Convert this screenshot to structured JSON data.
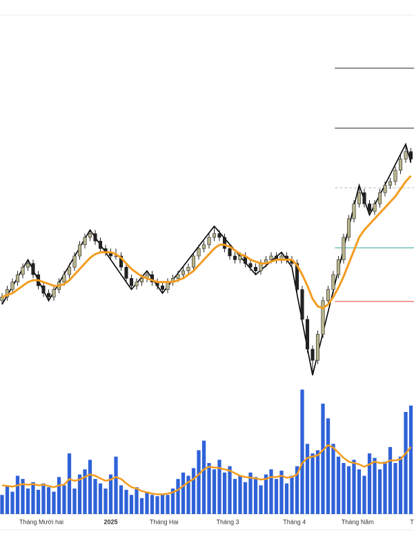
{
  "chart_data": {
    "type": "candlestick",
    "xlim": [
      -0.4,
      79.6
    ],
    "ylim": [
      20,
      30
    ],
    "volume_ylim": [
      0,
      200
    ],
    "up_color": "#b8b48c",
    "down_color": "#222222",
    "wick_color": "#222222",
    "ma_color": "#f39c1f",
    "volume_color": "#2f62d8",
    "zigzag_color": "#000000",
    "candles": [
      [
        22.3,
        22.5,
        22.2,
        22.4
      ],
      [
        22.4,
        22.7,
        22.3,
        22.6
      ],
      [
        22.6,
        22.9,
        22.5,
        22.8
      ],
      [
        22.8,
        23.1,
        22.7,
        23.0
      ],
      [
        23.0,
        23.3,
        22.9,
        23.2
      ],
      [
        23.2,
        23.4,
        23.1,
        23.3
      ],
      [
        23.3,
        23.4,
        22.9,
        23.0
      ],
      [
        23.0,
        23.1,
        22.6,
        22.7
      ],
      [
        22.7,
        22.8,
        22.4,
        22.5
      ],
      [
        22.5,
        22.6,
        22.3,
        22.4
      ],
      [
        22.4,
        22.7,
        22.3,
        22.6
      ],
      [
        22.6,
        22.9,
        22.5,
        22.8
      ],
      [
        22.8,
        23.1,
        22.7,
        23.0
      ],
      [
        23.0,
        23.3,
        22.9,
        23.2
      ],
      [
        23.2,
        23.6,
        23.1,
        23.5
      ],
      [
        23.5,
        23.9,
        23.4,
        23.8
      ],
      [
        23.8,
        24.1,
        23.7,
        24.0
      ],
      [
        24.0,
        24.2,
        23.9,
        24.1
      ],
      [
        24.1,
        24.2,
        23.8,
        23.9
      ],
      [
        23.9,
        24.0,
        23.6,
        23.7
      ],
      [
        23.7,
        23.8,
        23.5,
        23.6
      ],
      [
        23.6,
        23.7,
        23.4,
        23.5
      ],
      [
        23.5,
        23.7,
        23.4,
        23.5
      ],
      [
        23.5,
        23.6,
        23.1,
        23.2
      ],
      [
        23.2,
        23.3,
        22.8,
        22.9
      ],
      [
        22.9,
        23.0,
        22.6,
        22.7
      ],
      [
        22.7,
        22.9,
        22.6,
        22.8
      ],
      [
        22.8,
        23.0,
        22.7,
        22.9
      ],
      [
        22.9,
        23.1,
        22.8,
        23.0
      ],
      [
        23.0,
        23.1,
        22.7,
        22.8
      ],
      [
        22.8,
        22.9,
        22.6,
        22.7
      ],
      [
        22.7,
        22.8,
        22.5,
        22.6
      ],
      [
        22.6,
        22.9,
        22.5,
        22.8
      ],
      [
        22.8,
        23.0,
        22.7,
        22.9
      ],
      [
        22.9,
        23.1,
        22.8,
        23.0
      ],
      [
        23.0,
        23.2,
        22.9,
        23.1
      ],
      [
        23.1,
        23.3,
        23.0,
        23.2
      ],
      [
        23.2,
        23.6,
        23.1,
        23.5
      ],
      [
        23.5,
        23.8,
        23.4,
        23.7
      ],
      [
        23.7,
        23.9,
        23.6,
        23.8
      ],
      [
        23.8,
        24.1,
        23.7,
        24.0
      ],
      [
        24.0,
        24.3,
        23.9,
        24.1
      ],
      [
        24.1,
        24.2,
        23.9,
        24.0
      ],
      [
        24.0,
        24.1,
        23.6,
        23.7
      ],
      [
        23.7,
        23.8,
        23.4,
        23.5
      ],
      [
        23.5,
        23.6,
        23.3,
        23.4
      ],
      [
        23.4,
        23.6,
        23.3,
        23.5
      ],
      [
        23.5,
        23.6,
        23.2,
        23.3
      ],
      [
        23.3,
        23.4,
        23.1,
        23.2
      ],
      [
        23.2,
        23.3,
        23.0,
        23.1
      ],
      [
        23.1,
        23.4,
        23.0,
        23.3
      ],
      [
        23.3,
        23.5,
        23.2,
        23.4
      ],
      [
        23.4,
        23.6,
        23.3,
        23.5
      ],
      [
        23.5,
        23.6,
        23.3,
        23.4
      ],
      [
        23.4,
        23.6,
        23.3,
        23.5
      ],
      [
        23.5,
        23.6,
        23.3,
        23.4
      ],
      [
        23.4,
        23.5,
        23.2,
        23.3
      ],
      [
        23.3,
        23.4,
        22.5,
        22.6
      ],
      [
        22.6,
        22.7,
        21.7,
        21.8
      ],
      [
        21.8,
        21.9,
        20.9,
        21.0
      ],
      [
        21.0,
        21.1,
        20.3,
        20.7
      ],
      [
        20.7,
        21.5,
        20.6,
        21.4
      ],
      [
        21.4,
        22.4,
        21.3,
        22.3
      ],
      [
        22.3,
        22.7,
        22.2,
        22.6
      ],
      [
        22.6,
        23.1,
        22.5,
        23.0
      ],
      [
        23.0,
        23.5,
        22.9,
        23.4
      ],
      [
        23.4,
        24.1,
        23.3,
        24.0
      ],
      [
        24.0,
        24.6,
        23.9,
        24.5
      ],
      [
        24.5,
        25.0,
        24.4,
        24.9
      ],
      [
        24.9,
        25.4,
        24.8,
        25.2
      ],
      [
        25.2,
        25.3,
        24.8,
        24.9
      ],
      [
        24.9,
        25.0,
        24.6,
        24.7
      ],
      [
        24.7,
        25.0,
        24.6,
        24.9
      ],
      [
        24.9,
        25.3,
        24.8,
        25.2
      ],
      [
        25.2,
        25.5,
        25.1,
        25.4
      ],
      [
        25.4,
        25.6,
        25.3,
        25.5
      ],
      [
        25.5,
        25.9,
        25.4,
        25.8
      ],
      [
        25.8,
        26.2,
        25.7,
        26.1
      ],
      [
        26.1,
        26.5,
        26.0,
        26.3
      ],
      [
        26.3,
        26.4,
        26.0,
        26.1
      ]
    ],
    "ma": [
      22.4,
      22.45,
      22.5,
      22.6,
      22.7,
      22.8,
      22.85,
      22.85,
      22.8,
      22.75,
      22.7,
      22.7,
      22.75,
      22.85,
      23.0,
      23.15,
      23.3,
      23.45,
      23.55,
      23.6,
      23.6,
      23.6,
      23.55,
      23.45,
      23.3,
      23.15,
      23.05,
      22.95,
      22.9,
      22.85,
      22.8,
      22.8,
      22.8,
      22.8,
      22.85,
      22.9,
      23.0,
      23.1,
      23.25,
      23.4,
      23.55,
      23.7,
      23.8,
      23.8,
      23.75,
      23.65,
      23.55,
      23.5,
      23.4,
      23.35,
      23.3,
      23.3,
      23.35,
      23.4,
      23.4,
      23.4,
      23.4,
      23.25,
      23.0,
      22.7,
      22.35,
      22.15,
      22.1,
      22.2,
      22.4,
      22.65,
      22.95,
      23.3,
      23.65,
      24.0,
      24.2,
      24.35,
      24.5,
      24.65,
      24.8,
      24.95,
      25.1,
      25.3,
      25.5,
      25.65
    ],
    "zigzag": {
      "x": [
        0,
        5,
        9,
        17,
        25,
        28,
        31,
        41,
        49,
        54,
        56,
        60,
        69,
        71,
        78,
        79
      ],
      "values": [
        22.2,
        23.4,
        22.3,
        24.2,
        22.6,
        23.1,
        22.5,
        24.3,
        23.0,
        23.6,
        23.2,
        20.3,
        25.4,
        24.6,
        26.5,
        26.0
      ]
    },
    "levels_start": 64.3,
    "levels": [
      {
        "value": 28.54,
        "color": "#222222",
        "dashed": false
      },
      {
        "value": 26.93,
        "color": "#222222",
        "dashed": false
      },
      {
        "value": 25.33,
        "color": "#bbbbbb",
        "dashed": true
      },
      {
        "value": 23.72,
        "color": "#26a69a",
        "dashed": false
      },
      {
        "value": 22.28,
        "color": "#e53935",
        "dashed": false
      }
    ],
    "volumes": [
      30,
      45,
      35,
      60,
      55,
      40,
      50,
      38,
      48,
      42,
      35,
      58,
      45,
      95,
      40,
      62,
      70,
      85,
      55,
      48,
      40,
      62,
      90,
      45,
      38,
      30,
      42,
      25,
      35,
      30,
      28,
      32,
      30,
      40,
      55,
      65,
      60,
      72,
      100,
      115,
      80,
      70,
      85,
      65,
      75,
      55,
      60,
      50,
      65,
      58,
      45,
      62,
      70,
      55,
      68,
      48,
      60,
      75,
      195,
      110,
      95,
      100,
      173,
      150,
      110,
      90,
      80,
      75,
      85,
      70,
      60,
      95,
      88,
      70,
      82,
      105,
      80,
      90,
      160,
      170
    ],
    "volume_ma": [
      45,
      44,
      43,
      45,
      47,
      46,
      47,
      45,
      46,
      44,
      42,
      45,
      46,
      55,
      52,
      54,
      58,
      62,
      60,
      56,
      52,
      54,
      58,
      55,
      48,
      42,
      40,
      36,
      34,
      32,
      31,
      31,
      32,
      34,
      38,
      44,
      50,
      55,
      62,
      70,
      74,
      73,
      72,
      70,
      68,
      64,
      60,
      58,
      57,
      56,
      54,
      55,
      58,
      58,
      60,
      57,
      58,
      62,
      80,
      88,
      90,
      92,
      100,
      108,
      104,
      96,
      88,
      82,
      80,
      78,
      74,
      78,
      82,
      80,
      80,
      84,
      84,
      86,
      95,
      105
    ],
    "x_labels": {
      "positions": [
        7.6,
        21,
        31.3,
        43.6,
        56.5,
        68.7,
        79.2
      ],
      "labels": [
        "Tháng Mười hai",
        "2025",
        "Tháng Hai",
        "Tháng 3",
        "Tháng 4",
        "Tháng Năm",
        "T"
      ],
      "bold": [
        false,
        true,
        false,
        false,
        false,
        false,
        false
      ]
    }
  }
}
